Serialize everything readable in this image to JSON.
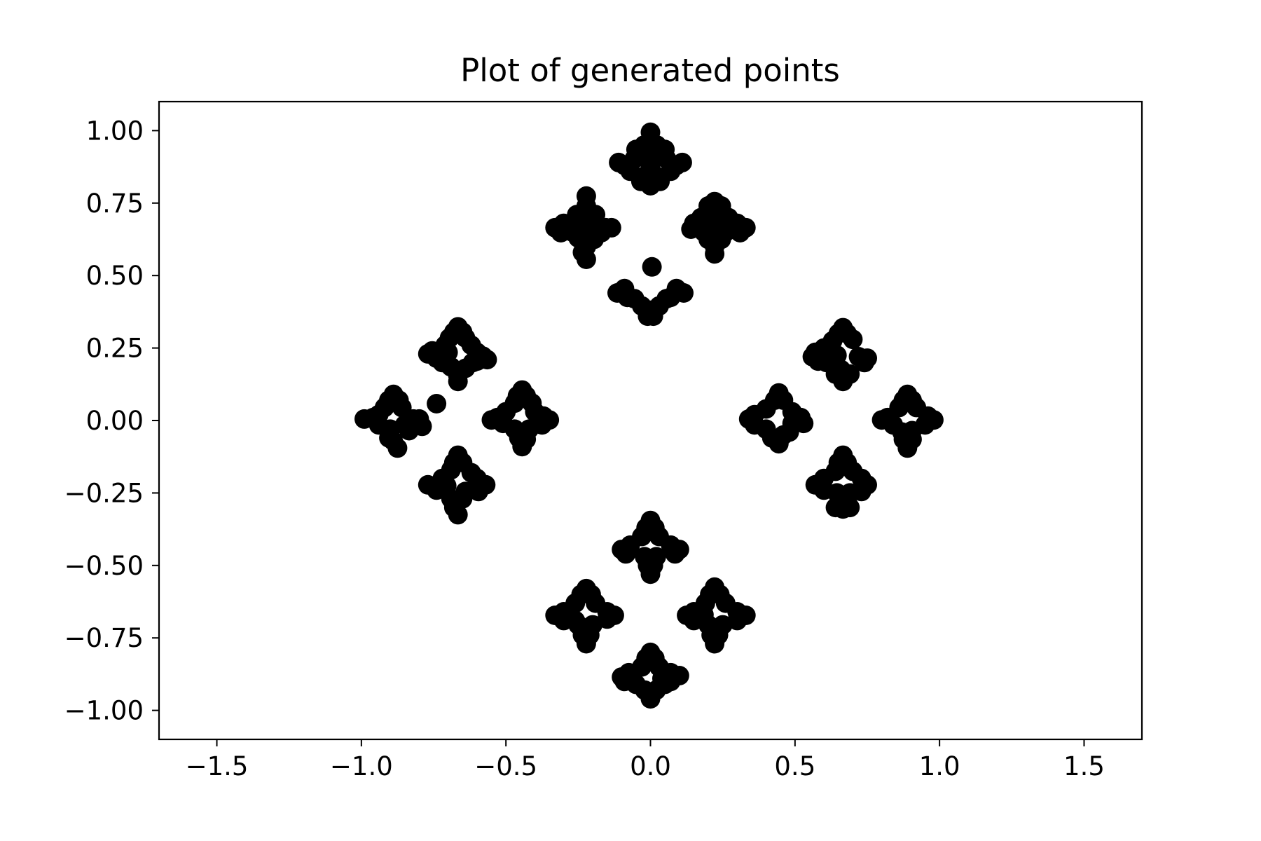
{
  "chart_data": {
    "type": "scatter",
    "title": "Plot of generated points",
    "xlabel": "",
    "ylabel": "",
    "xlim": [
      -1.7,
      1.7
    ],
    "ylim": [
      -1.1,
      1.1
    ],
    "xticks": [
      -1.5,
      -1.0,
      -0.5,
      0.0,
      0.5,
      1.0,
      1.5
    ],
    "xtick_labels": [
      "−1.5",
      "−1.0",
      "−0.5",
      "0.0",
      "0.5",
      "1.0",
      "1.5"
    ],
    "yticks": [
      1.0,
      0.75,
      0.5,
      0.25,
      0.0,
      -0.25,
      -0.5,
      -0.75,
      -1.0
    ],
    "ytick_labels": [
      "1.00",
      "0.75",
      "0.50",
      "0.25",
      "0.00",
      "−0.25",
      "−0.50",
      "−0.75",
      "−1.00"
    ],
    "grid": false,
    "marker_color": "#000000",
    "points": [
      [
        0,
        0.994
      ],
      [
        0,
        0.962
      ],
      [
        -0.033,
        0.918
      ],
      [
        0.033,
        0.918
      ],
      [
        0,
        0.874
      ],
      [
        -0.022,
        0.842
      ],
      [
        0.022,
        0.842
      ],
      [
        0,
        0.81
      ],
      [
        -0.09,
        0.88
      ],
      [
        -0.056,
        0.902
      ],
      [
        0.056,
        0.902
      ],
      [
        0.09,
        0.88
      ],
      [
        -0.11,
        0.89
      ],
      [
        0.11,
        0.89
      ],
      [
        -0.07,
        0.86
      ],
      [
        0.07,
        0.86
      ],
      [
        -0.022,
        0.95
      ],
      [
        0.022,
        0.95
      ],
      [
        -0.05,
        0.935
      ],
      [
        0.05,
        0.935
      ],
      [
        0,
        0.93
      ],
      [
        -0.033,
        0.825
      ],
      [
        0.033,
        0.825
      ],
      [
        -0.222,
        0.774
      ],
      [
        -0.222,
        0.74
      ],
      [
        -0.255,
        0.71
      ],
      [
        -0.19,
        0.71
      ],
      [
        -0.3,
        0.68
      ],
      [
        -0.33,
        0.665
      ],
      [
        -0.31,
        0.648
      ],
      [
        -0.255,
        0.676
      ],
      [
        -0.19,
        0.672
      ],
      [
        -0.155,
        0.665
      ],
      [
        -0.135,
        0.665
      ],
      [
        -0.17,
        0.648
      ],
      [
        -0.25,
        0.63
      ],
      [
        -0.195,
        0.625
      ],
      [
        -0.222,
        0.6
      ],
      [
        -0.235,
        0.58
      ],
      [
        -0.222,
        0.556
      ],
      [
        -0.245,
        0.7
      ],
      [
        -0.2,
        0.69
      ],
      [
        -0.27,
        0.65
      ],
      [
        -0.21,
        0.64
      ],
      [
        0.222,
        0.755
      ],
      [
        0.2,
        0.74
      ],
      [
        0.245,
        0.74
      ],
      [
        0.175,
        0.7
      ],
      [
        0.27,
        0.7
      ],
      [
        0.15,
        0.68
      ],
      [
        0.14,
        0.66
      ],
      [
        0.3,
        0.68
      ],
      [
        0.33,
        0.665
      ],
      [
        0.31,
        0.648
      ],
      [
        0.185,
        0.65
      ],
      [
        0.26,
        0.65
      ],
      [
        0.2,
        0.625
      ],
      [
        0.245,
        0.625
      ],
      [
        0.222,
        0.6
      ],
      [
        0.222,
        0.575
      ],
      [
        0.215,
        0.72
      ],
      [
        0.23,
        0.68
      ],
      [
        0.005,
        0.53
      ],
      [
        -0.09,
        0.455
      ],
      [
        -0.115,
        0.44
      ],
      [
        -0.08,
        0.425
      ],
      [
        0.09,
        0.455
      ],
      [
        0.115,
        0.44
      ],
      [
        0.07,
        0.425
      ],
      [
        -0.03,
        0.395
      ],
      [
        0.03,
        0.395
      ],
      [
        0,
        0.38
      ],
      [
        -0.01,
        0.36
      ],
      [
        0.01,
        0.36
      ],
      [
        -0.055,
        0.42
      ],
      [
        0.055,
        0.42
      ],
      [
        -0.666,
        0.323
      ],
      [
        -0.68,
        0.305
      ],
      [
        -0.65,
        0.305
      ],
      [
        -0.695,
        0.285
      ],
      [
        -0.64,
        0.285
      ],
      [
        -0.71,
        0.26
      ],
      [
        -0.62,
        0.26
      ],
      [
        -0.77,
        0.23
      ],
      [
        -0.755,
        0.24
      ],
      [
        -0.74,
        0.215
      ],
      [
        -0.72,
        0.2
      ],
      [
        -0.7,
        0.235
      ],
      [
        -0.6,
        0.235
      ],
      [
        -0.58,
        0.222
      ],
      [
        -0.565,
        0.21
      ],
      [
        -0.615,
        0.2
      ],
      [
        -0.64,
        0.18
      ],
      [
        -0.69,
        0.185
      ],
      [
        -0.666,
        0.155
      ],
      [
        -0.666,
        0.135
      ],
      [
        -0.6,
        0.205
      ],
      [
        -0.889,
        0.09
      ],
      [
        -0.905,
        0.07
      ],
      [
        -0.87,
        0.07
      ],
      [
        -0.92,
        0.045
      ],
      [
        -0.86,
        0.045
      ],
      [
        -0.96,
        0.01
      ],
      [
        -0.99,
        0.005
      ],
      [
        -0.94,
        0.02
      ],
      [
        -0.94,
        -0.015
      ],
      [
        -0.9,
        -0.03
      ],
      [
        -0.85,
        -0.015
      ],
      [
        -0.82,
        0.005
      ],
      [
        -0.8,
        0.005
      ],
      [
        -0.79,
        -0.02
      ],
      [
        -0.835,
        -0.035
      ],
      [
        -0.89,
        -0.07
      ],
      [
        -0.875,
        -0.095
      ],
      [
        -0.905,
        -0.06
      ],
      [
        -0.74,
        0.058
      ],
      [
        -0.444,
        0.105
      ],
      [
        -0.46,
        0.085
      ],
      [
        -0.43,
        0.085
      ],
      [
        -0.47,
        0.06
      ],
      [
        -0.41,
        0.06
      ],
      [
        -0.5,
        0.03
      ],
      [
        -0.53,
        0.01
      ],
      [
        -0.55,
        0.002
      ],
      [
        -0.51,
        -0.01
      ],
      [
        -0.4,
        0.03
      ],
      [
        -0.37,
        0.015
      ],
      [
        -0.35,
        0.002
      ],
      [
        -0.375,
        -0.015
      ],
      [
        -0.42,
        -0.03
      ],
      [
        -0.47,
        -0.03
      ],
      [
        -0.455,
        -0.06
      ],
      [
        -0.43,
        -0.065
      ],
      [
        -0.444,
        -0.09
      ],
      [
        -0.666,
        -0.12
      ],
      [
        -0.68,
        -0.145
      ],
      [
        -0.65,
        -0.145
      ],
      [
        -0.69,
        -0.17
      ],
      [
        -0.72,
        -0.2
      ],
      [
        -0.77,
        -0.222
      ],
      [
        -0.74,
        -0.24
      ],
      [
        -0.705,
        -0.225
      ],
      [
        -0.62,
        -0.18
      ],
      [
        -0.6,
        -0.2
      ],
      [
        -0.57,
        -0.222
      ],
      [
        -0.595,
        -0.245
      ],
      [
        -0.64,
        -0.245
      ],
      [
        -0.69,
        -0.27
      ],
      [
        -0.65,
        -0.27
      ],
      [
        -0.68,
        -0.3
      ],
      [
        -0.666,
        -0.325
      ],
      [
        0.444,
        0.095
      ],
      [
        0.43,
        0.07
      ],
      [
        0.46,
        0.07
      ],
      [
        0.4,
        0.04
      ],
      [
        0.49,
        0.03
      ],
      [
        0.36,
        0.02
      ],
      [
        0.34,
        0.005
      ],
      [
        0.36,
        -0.015
      ],
      [
        0.52,
        0.01
      ],
      [
        0.53,
        -0.01
      ],
      [
        0.49,
        -0.01
      ],
      [
        0.4,
        -0.03
      ],
      [
        0.42,
        -0.06
      ],
      [
        0.46,
        -0.05
      ],
      [
        0.444,
        -0.08
      ],
      [
        0.48,
        -0.04
      ],
      [
        0.666,
        0.32
      ],
      [
        0.65,
        0.3
      ],
      [
        0.68,
        0.3
      ],
      [
        0.7,
        0.28
      ],
      [
        0.63,
        0.275
      ],
      [
        0.6,
        0.25
      ],
      [
        0.57,
        0.235
      ],
      [
        0.56,
        0.22
      ],
      [
        0.58,
        0.205
      ],
      [
        0.61,
        0.2
      ],
      [
        0.645,
        0.225
      ],
      [
        0.72,
        0.22
      ],
      [
        0.75,
        0.215
      ],
      [
        0.74,
        0.2
      ],
      [
        0.66,
        0.175
      ],
      [
        0.69,
        0.16
      ],
      [
        0.666,
        0.135
      ],
      [
        0.64,
        0.16
      ],
      [
        0.889,
        0.09
      ],
      [
        0.875,
        0.07
      ],
      [
        0.905,
        0.07
      ],
      [
        0.86,
        0.045
      ],
      [
        0.92,
        0.045
      ],
      [
        0.82,
        0.01
      ],
      [
        0.8,
        0.002
      ],
      [
        0.84,
        -0.015
      ],
      [
        0.96,
        0.015
      ],
      [
        0.98,
        0.002
      ],
      [
        0.95,
        -0.015
      ],
      [
        0.905,
        -0.035
      ],
      [
        0.87,
        -0.04
      ],
      [
        0.875,
        -0.065
      ],
      [
        0.905,
        -0.065
      ],
      [
        0.889,
        -0.095
      ],
      [
        0.666,
        -0.12
      ],
      [
        0.65,
        -0.145
      ],
      [
        0.68,
        -0.145
      ],
      [
        0.64,
        -0.175
      ],
      [
        0.7,
        -0.175
      ],
      [
        0.6,
        -0.2
      ],
      [
        0.57,
        -0.222
      ],
      [
        0.6,
        -0.24
      ],
      [
        0.75,
        -0.222
      ],
      [
        0.73,
        -0.2
      ],
      [
        0.73,
        -0.245
      ],
      [
        0.69,
        -0.25
      ],
      [
        0.645,
        -0.25
      ],
      [
        0.655,
        -0.28
      ],
      [
        0.68,
        -0.28
      ],
      [
        0.666,
        -0.305
      ],
      [
        0.64,
        -0.3
      ],
      [
        0.69,
        -0.3
      ],
      [
        0,
        -0.345
      ],
      [
        -0.015,
        -0.37
      ],
      [
        0.015,
        -0.37
      ],
      [
        -0.03,
        -0.4
      ],
      [
        0.03,
        -0.4
      ],
      [
        -0.07,
        -0.43
      ],
      [
        -0.1,
        -0.445
      ],
      [
        -0.085,
        -0.46
      ],
      [
        0.07,
        -0.43
      ],
      [
        0.1,
        -0.445
      ],
      [
        0.085,
        -0.46
      ],
      [
        -0.02,
        -0.47
      ],
      [
        0.02,
        -0.47
      ],
      [
        -0.01,
        -0.5
      ],
      [
        0.01,
        -0.5
      ],
      [
        0,
        -0.53
      ],
      [
        -0.222,
        -0.58
      ],
      [
        -0.24,
        -0.6
      ],
      [
        -0.205,
        -0.6
      ],
      [
        -0.26,
        -0.63
      ],
      [
        -0.19,
        -0.63
      ],
      [
        -0.3,
        -0.66
      ],
      [
        -0.33,
        -0.672
      ],
      [
        -0.3,
        -0.69
      ],
      [
        -0.15,
        -0.66
      ],
      [
        -0.125,
        -0.672
      ],
      [
        -0.15,
        -0.685
      ],
      [
        -0.25,
        -0.705
      ],
      [
        -0.2,
        -0.705
      ],
      [
        -0.235,
        -0.74
      ],
      [
        -0.21,
        -0.74
      ],
      [
        -0.222,
        -0.77
      ],
      [
        -0.26,
        -0.69
      ],
      [
        0.222,
        -0.575
      ],
      [
        0.205,
        -0.6
      ],
      [
        0.24,
        -0.6
      ],
      [
        0.19,
        -0.63
      ],
      [
        0.26,
        -0.63
      ],
      [
        0.15,
        -0.66
      ],
      [
        0.125,
        -0.672
      ],
      [
        0.15,
        -0.69
      ],
      [
        0.3,
        -0.66
      ],
      [
        0.33,
        -0.672
      ],
      [
        0.3,
        -0.69
      ],
      [
        0.2,
        -0.705
      ],
      [
        0.25,
        -0.705
      ],
      [
        0.21,
        -0.74
      ],
      [
        0.235,
        -0.74
      ],
      [
        0.222,
        -0.77
      ],
      [
        0.185,
        -0.67
      ],
      [
        0,
        -0.8
      ],
      [
        -0.015,
        -0.82
      ],
      [
        0.015,
        -0.82
      ],
      [
        -0.03,
        -0.85
      ],
      [
        0.03,
        -0.85
      ],
      [
        -0.075,
        -0.87
      ],
      [
        -0.1,
        -0.885
      ],
      [
        -0.09,
        -0.9
      ],
      [
        0.07,
        -0.87
      ],
      [
        0.1,
        -0.88
      ],
      [
        0.07,
        -0.9
      ],
      [
        -0.05,
        -0.91
      ],
      [
        0.05,
        -0.91
      ],
      [
        -0.02,
        -0.93
      ],
      [
        0.02,
        -0.93
      ],
      [
        0,
        -0.96
      ],
      [
        -0.06,
        -0.895
      ],
      [
        0.04,
        -0.89
      ]
    ]
  }
}
